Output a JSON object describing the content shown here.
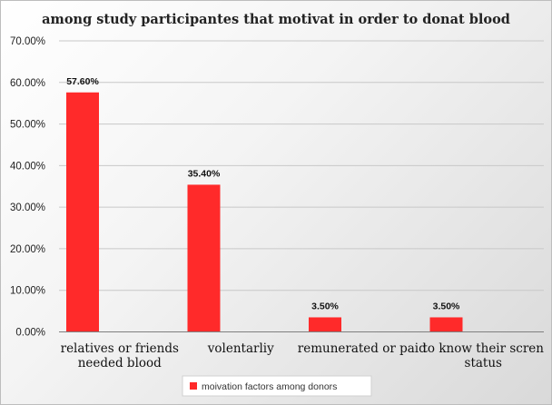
{
  "chart_data": {
    "type": "bar",
    "title": "among  study participantes  that motivat  in order to donat blood",
    "categories": [
      [
        "relatives or friends",
        "needed blood"
      ],
      [
        "volentarliy"
      ],
      [
        "remunerated or paid"
      ],
      [
        "to know their scren",
        "status"
      ]
    ],
    "series": [
      {
        "name": "moivation factors among donors",
        "values": [
          57.6,
          35.4,
          3.5,
          3.5
        ],
        "data_labels": [
          "57.60%",
          "35.40%",
          "3.50%",
          "3.50%"
        ],
        "color": "#ff2a2a"
      }
    ],
    "y_ticks": [
      "0.00%",
      "10.00%",
      "20.00%",
      "30.00%",
      "40.00%",
      "50.00%",
      "60.00%",
      "70.00%"
    ],
    "ylim": [
      0,
      70
    ],
    "grid": true,
    "legend_position": "bottom"
  }
}
